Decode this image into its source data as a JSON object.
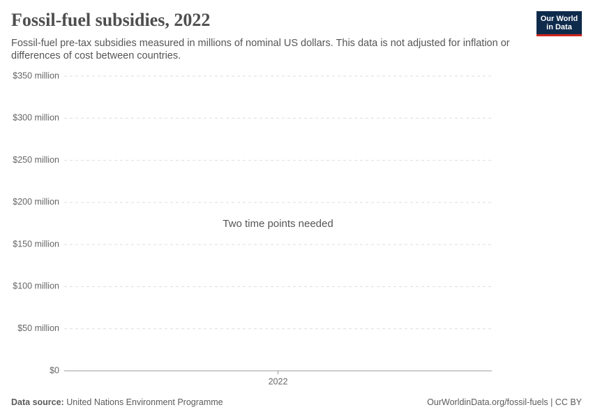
{
  "chart_data": {
    "type": "line",
    "title": "Fossil-fuel subsidies, 2022",
    "subtitle": "Fossil-fuel pre-tax subsidies measured in millions of nominal US dollars. This data is not adjusted for inflation or differences of cost between countries.",
    "annotation": "Two time points needed",
    "ylim": [
      0,
      350
    ],
    "yticks": [
      {
        "value": 0,
        "label": "$0"
      },
      {
        "value": 50,
        "label": "$50 million"
      },
      {
        "value": 100,
        "label": "$100 million"
      },
      {
        "value": 150,
        "label": "$150 million"
      },
      {
        "value": 200,
        "label": "$200 million"
      },
      {
        "value": 250,
        "label": "$250 million"
      },
      {
        "value": 300,
        "label": "$300 million"
      },
      {
        "value": 350,
        "label": "$350 million"
      }
    ],
    "xticks": [
      2022
    ],
    "grid": true
  },
  "logo": [
    "Our World",
    "in Data"
  ],
  "source": {
    "label": "Data source:",
    "text": "United Nations Environment Programme"
  },
  "footer_link": "OurWorldinData.org/fossil-fuels | CC BY"
}
